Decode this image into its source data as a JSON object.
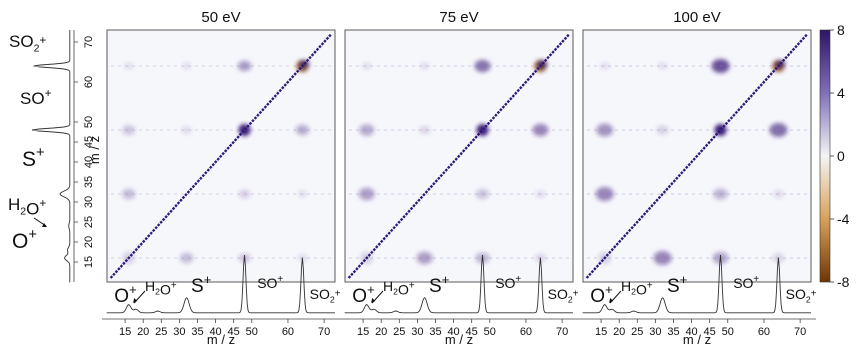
{
  "chart_data": {
    "type": "heatmap",
    "axis_label": "m / z",
    "ticks": [
      15,
      20,
      25,
      30,
      35,
      40,
      45,
      50,
      60,
      70
    ],
    "axis_range": [
      10,
      73
    ],
    "panel_titles": [
      "50 eV",
      "75 eV",
      "100 eV"
    ],
    "colorbar": {
      "ticks": [
        "8",
        "4",
        "0",
        "-4",
        "-8"
      ],
      "range": [
        -8,
        8
      ],
      "high_color": "#3b1a78",
      "zero_color": "#f4f4f4",
      "low_color": "#7a3d07"
    },
    "ion_labels": [
      {
        "ion": "O",
        "charge": "+",
        "mz": 16
      },
      {
        "ion": "H2O",
        "charge": "+",
        "mz": 18
      },
      {
        "ion": "S",
        "charge": "+",
        "mz": 32
      },
      {
        "ion": "SO",
        "charge": "+",
        "mz": 48
      },
      {
        "ion": "SO2",
        "charge": "+",
        "mz": 64
      }
    ],
    "spectrum_peaks": [
      {
        "mz": 16,
        "height": 0.14
      },
      {
        "mz": 18,
        "height": 0.06
      },
      {
        "mz": 24,
        "height": 0.03
      },
      {
        "mz": 32,
        "height": 0.26
      },
      {
        "mz": 48,
        "height": 1.0
      },
      {
        "mz": 64,
        "height": 0.95
      }
    ],
    "covariance_islands": [
      {
        "x": 16,
        "y": 64,
        "value": 0.5
      },
      {
        "x": 32,
        "y": 64,
        "value": 0.5
      },
      {
        "x": 48,
        "y": 64,
        "value": 6
      },
      {
        "x": 64,
        "y": 64,
        "value": -7
      },
      {
        "x": 16,
        "y": 48,
        "value": 3.5
      },
      {
        "x": 32,
        "y": 48,
        "value": 1.5
      },
      {
        "x": 48,
        "y": 48,
        "value": 8
      },
      {
        "x": 64,
        "y": 48,
        "value": 5
      },
      {
        "x": 16,
        "y": 32,
        "value": 4
      },
      {
        "x": 48,
        "y": 32,
        "value": 2.5
      },
      {
        "x": 64,
        "y": 32,
        "value": 1
      },
      {
        "x": 16,
        "y": 16,
        "value": 1.5
      },
      {
        "x": 32,
        "y": 16,
        "value": 4
      },
      {
        "x": 48,
        "y": 16,
        "value": 3
      },
      {
        "x": 64,
        "y": 16,
        "value": 1.5
      }
    ],
    "panel_intensity": [
      0.55,
      0.8,
      1.0
    ]
  }
}
